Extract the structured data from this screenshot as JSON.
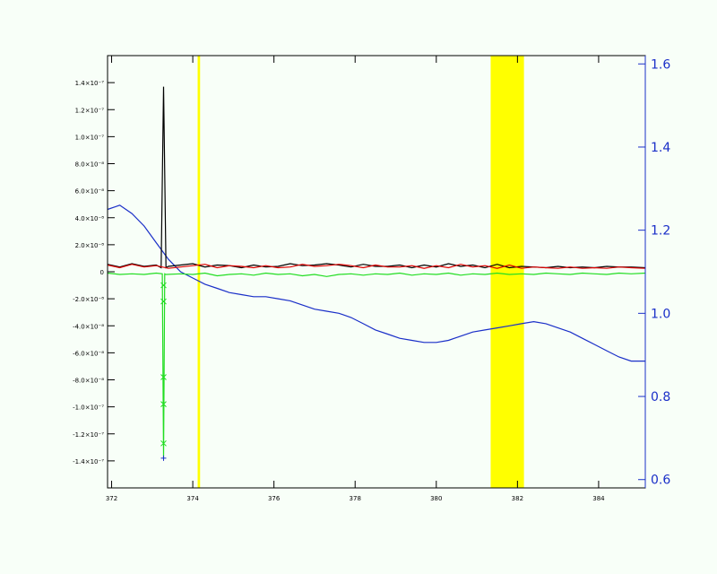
{
  "chart_data": {
    "type": "line",
    "title": "",
    "xlabel": "",
    "ylabel": "",
    "xlim": [
      3.719,
      3.8515
    ],
    "ylim_left": [
      -1.6e-07,
      1.6e-07
    ],
    "ylim_right": [
      0.58,
      1.62
    ],
    "x_tick_labels": [
      {
        "value": 3.72,
        "label": "372"
      },
      {
        "value": 3.74,
        "label": "374"
      },
      {
        "value": 3.76,
        "label": "376"
      },
      {
        "value": 3.78,
        "label": "378"
      },
      {
        "value": 3.8,
        "label": "380"
      },
      {
        "value": 3.82,
        "label": "382"
      },
      {
        "value": 3.84,
        "label": "384"
      }
    ],
    "y_left_tick_labels": [
      {
        "value": 1.4e-07,
        "label": "1.4×10⁻⁷"
      },
      {
        "value": 1.2e-07,
        "label": "1.2×10⁻⁷"
      },
      {
        "value": 1e-07,
        "label": "1.0×10⁻⁷"
      },
      {
        "value": 8e-08,
        "label": "8.0×10⁻⁸"
      },
      {
        "value": 6e-08,
        "label": "6.0×10⁻⁸"
      },
      {
        "value": 4e-08,
        "label": "4.0×10⁻⁸"
      },
      {
        "value": 2e-08,
        "label": "2.0×10⁻⁸"
      },
      {
        "value": 0,
        "label": "0"
      },
      {
        "value": -2e-08,
        "label": "-2.0×10⁻⁸"
      },
      {
        "value": -4e-08,
        "label": "-4.0×10⁻⁸"
      },
      {
        "value": -6e-08,
        "label": "-6.0×10⁻⁸"
      },
      {
        "value": -8e-08,
        "label": "-8.0×10⁻⁸"
      },
      {
        "value": -1e-07,
        "label": "-1.0×10⁻⁷"
      },
      {
        "value": -1.2e-07,
        "label": "-1.2×10⁻⁷"
      },
      {
        "value": -1.4e-07,
        "label": "-1.4×10⁻⁷"
      }
    ],
    "y_right_tick_labels": [
      {
        "value": 0.6,
        "label": "0.6"
      },
      {
        "value": 0.8,
        "label": "0.8"
      },
      {
        "value": 1.0,
        "label": "1.0"
      },
      {
        "value": 1.2,
        "label": "1.2"
      },
      {
        "value": 1.4,
        "label": "1.4"
      },
      {
        "value": 1.6,
        "label": "1.6"
      }
    ],
    "highlight_bands": [
      {
        "x0": 3.7412,
        "x1": 3.7418,
        "color": "#ffff00"
      },
      {
        "x0": 3.8134,
        "x1": 3.8216,
        "color": "#ffff00"
      }
    ],
    "series": [
      {
        "axis": "right",
        "color": "#1a2fc8",
        "x": [
          3.719,
          3.722,
          3.725,
          3.728,
          3.731,
          3.734,
          3.737,
          3.74,
          3.743,
          3.746,
          3.749,
          3.752,
          3.755,
          3.758,
          3.761,
          3.764,
          3.767,
          3.77,
          3.773,
          3.776,
          3.779,
          3.782,
          3.785,
          3.788,
          3.791,
          3.794,
          3.797,
          3.8,
          3.803,
          3.806,
          3.809,
          3.812,
          3.815,
          3.818,
          3.821,
          3.824,
          3.827,
          3.83,
          3.833,
          3.836,
          3.839,
          3.842,
          3.845,
          3.848,
          3.8515
        ],
        "values": [
          1.25,
          1.26,
          1.24,
          1.21,
          1.17,
          1.13,
          1.1,
          1.085,
          1.07,
          1.06,
          1.05,
          1.045,
          1.04,
          1.04,
          1.035,
          1.03,
          1.02,
          1.01,
          1.005,
          1.0,
          0.99,
          0.975,
          0.96,
          0.95,
          0.94,
          0.935,
          0.93,
          0.93,
          0.935,
          0.945,
          0.955,
          0.96,
          0.965,
          0.97,
          0.975,
          0.98,
          0.975,
          0.965,
          0.955,
          0.94,
          0.925,
          0.91,
          0.895,
          0.885,
          0.885
        ]
      },
      {
        "axis": "left",
        "color": "#000000",
        "x": [
          3.719,
          3.722,
          3.725,
          3.728,
          3.731,
          3.7322,
          3.7328,
          3.7334,
          3.734,
          3.737,
          3.74,
          3.743,
          3.746,
          3.749,
          3.752,
          3.755,
          3.758,
          3.761,
          3.764,
          3.767,
          3.77,
          3.773,
          3.776,
          3.779,
          3.782,
          3.785,
          3.788,
          3.791,
          3.794,
          3.797,
          3.8,
          3.803,
          3.806,
          3.809,
          3.812,
          3.815,
          3.818,
          3.821,
          3.824,
          3.827,
          3.83,
          3.833,
          3.836,
          3.839,
          3.842,
          3.845,
          3.848,
          3.8515
        ],
        "values": [
          5.5e-09,
          3.5e-09,
          6e-09,
          4e-09,
          5e-09,
          3e-09,
          1.37e-07,
          3e-09,
          4e-09,
          5e-09,
          6e-09,
          3.5e-09,
          5e-09,
          4.5e-09,
          3e-09,
          5e-09,
          3.5e-09,
          4e-09,
          6e-09,
          4.5e-09,
          5e-09,
          6e-09,
          5e-09,
          3.5e-09,
          5.5e-09,
          4e-09,
          4e-09,
          5e-09,
          3e-09,
          5e-09,
          3.5e-09,
          6e-09,
          4e-09,
          5e-09,
          3e-09,
          5.5e-09,
          3e-09,
          4e-09,
          3.5e-09,
          3e-09,
          4e-09,
          3e-09,
          3.5e-09,
          3e-09,
          4e-09,
          3.5e-09,
          3.5e-09,
          3e-09
        ]
      },
      {
        "axis": "left",
        "color": "#e00000",
        "x": [
          3.719,
          3.722,
          3.725,
          3.728,
          3.731,
          3.734,
          3.737,
          3.74,
          3.743,
          3.746,
          3.749,
          3.752,
          3.755,
          3.758,
          3.761,
          3.764,
          3.767,
          3.77,
          3.773,
          3.776,
          3.779,
          3.782,
          3.785,
          3.788,
          3.791,
          3.794,
          3.797,
          3.8,
          3.803,
          3.806,
          3.809,
          3.812,
          3.815,
          3.818,
          3.821,
          3.824,
          3.827,
          3.83,
          3.833,
          3.836,
          3.839,
          3.842,
          3.845,
          3.848,
          3.8515
        ],
        "values": [
          5e-09,
          3e-09,
          5.5e-09,
          3.5e-09,
          4.5e-09,
          2.5e-09,
          3.5e-09,
          4.5e-09,
          5.5e-09,
          3e-09,
          4.5e-09,
          4e-09,
          3e-09,
          4.5e-09,
          3e-09,
          3.5e-09,
          5.5e-09,
          4e-09,
          4.5e-09,
          5.5e-09,
          4.5e-09,
          3e-09,
          5e-09,
          3.5e-09,
          3.5e-09,
          4.5e-09,
          2.5e-09,
          4.5e-09,
          3e-09,
          5.5e-09,
          3.5e-09,
          4.5e-09,
          2.5e-09,
          5e-09,
          2.5e-09,
          3.5e-09,
          3e-09,
          2.5e-09,
          3.5e-09,
          2.5e-09,
          3e-09,
          2.5e-09,
          3.5e-09,
          3e-09,
          2.5e-09
        ]
      },
      {
        "axis": "left",
        "color": "#22dd22",
        "x": [
          3.719,
          3.722,
          3.725,
          3.728,
          3.731,
          3.7325,
          3.7328,
          3.7331,
          3.7334,
          3.737,
          3.74,
          3.743,
          3.746,
          3.749,
          3.752,
          3.755,
          3.758,
          3.761,
          3.764,
          3.767,
          3.77,
          3.773,
          3.776,
          3.779,
          3.782,
          3.785,
          3.788,
          3.791,
          3.794,
          3.797,
          3.8,
          3.803,
          3.806,
          3.809,
          3.812,
          3.815,
          3.818,
          3.821,
          3.824,
          3.827,
          3.83,
          3.833,
          3.836,
          3.839,
          3.842,
          3.845,
          3.848,
          3.8515
        ],
        "values": [
          -1e-09,
          -2e-09,
          -1.5e-09,
          -2e-09,
          -1e-09,
          -1.5e-09,
          -1.38e-07,
          -1.5e-09,
          -2e-09,
          -1.5e-09,
          -2e-09,
          -1e-09,
          -3e-09,
          -2e-09,
          -1.5e-09,
          -2.5e-09,
          -1e-09,
          -2e-09,
          -1.5e-09,
          -3e-09,
          -2e-09,
          -3.5e-09,
          -2e-09,
          -1.5e-09,
          -2.5e-09,
          -1.5e-09,
          -2e-09,
          -1e-09,
          -2.5e-09,
          -1.5e-09,
          -2e-09,
          -1e-09,
          -2.5e-09,
          -1.5e-09,
          -2e-09,
          -1e-09,
          -2e-09,
          -1.5e-09,
          -2e-09,
          -1e-09,
          -1.5e-09,
          -2e-09,
          -1e-09,
          -1.5e-09,
          -2e-09,
          -1e-09,
          -1.5e-09,
          -1e-09
        ]
      }
    ],
    "markers": [
      {
        "series_color": "#22dd22",
        "symbol": "x",
        "x": 3.7328,
        "values": [
          -1e-08,
          -2.2e-08,
          -7.8e-08,
          -9.8e-08,
          -1.27e-07
        ]
      },
      {
        "series_color": "#1a2fc8",
        "symbol": "+",
        "x": 3.7328,
        "values": [
          -1.38e-07
        ]
      }
    ]
  }
}
